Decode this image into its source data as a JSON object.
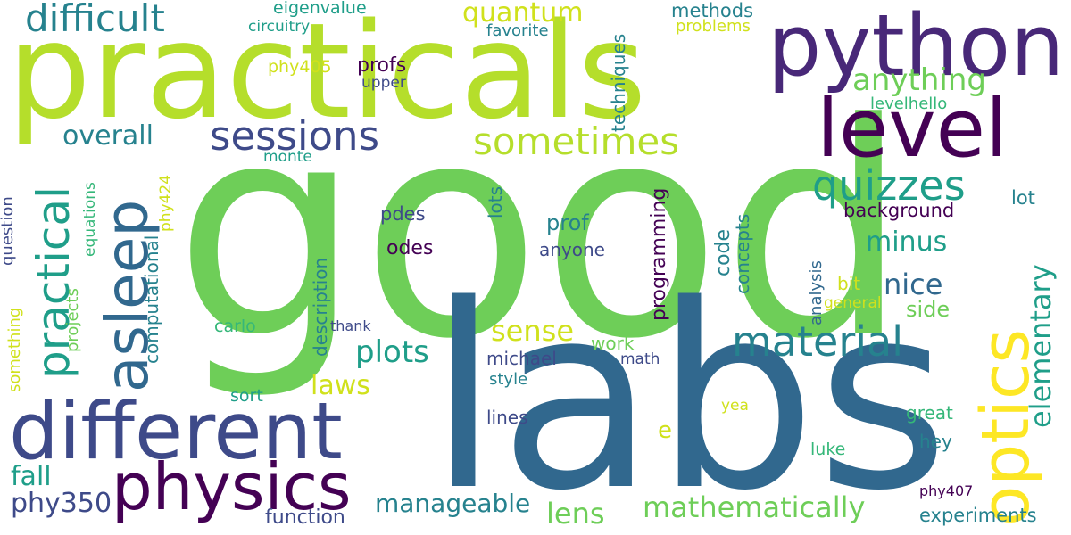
{
  "words": [
    "good",
    "labs",
    "practicals",
    "python",
    "level",
    "different",
    "physics",
    "asleep",
    "optics",
    "practical",
    "material",
    "difficult",
    "sessions",
    "sometimes",
    "quizzes",
    "quantum",
    "anything",
    "overall",
    "nice",
    "minus",
    "elementary",
    "plots",
    "sense",
    "laws",
    "mathematically",
    "manageable",
    "lens",
    "fall",
    "phy350",
    "function",
    "experiments",
    "methods",
    "eigenvalue",
    "circuitry",
    "favorite",
    "problems",
    "phy405",
    "profs",
    "upper",
    "techniques",
    "levelhello",
    "background",
    "lot",
    "monte",
    "phy424",
    "pdes",
    "prof",
    "programming",
    "code",
    "concepts",
    "odes",
    "anyone",
    "description",
    "computational",
    "question",
    "equations",
    "projects",
    "something",
    "lots",
    "analysis",
    "bit",
    "general",
    "side",
    "carlo",
    "thank",
    "work",
    "michael",
    "math",
    "style",
    "sort",
    "yea",
    "great",
    "hey",
    "luke",
    "lines",
    "e",
    "phy407"
  ],
  "colors": {
    "lime": "#b5de2b",
    "green": "#6ece58",
    "green2": "#35b779",
    "teal": "#1f9e89",
    "teal2": "#26828e",
    "blue": "#31688e",
    "indigo": "#3e4a89",
    "purple": "#482878",
    "dark": "#440154",
    "yellow": "#fde725",
    "yellow2": "#d0e11c"
  }
}
